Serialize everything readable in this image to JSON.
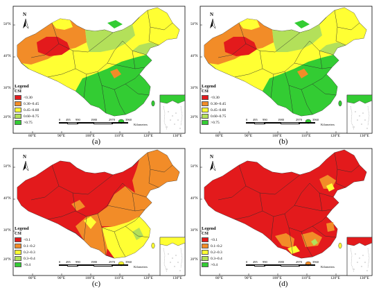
{
  "panels": [
    {
      "caption": "(a)",
      "legend": {
        "title": "Legend",
        "subtitle": "CSI",
        "items": [
          {
            "label": "<0.30",
            "color": "#e31a1c"
          },
          {
            "label": "0.30~0.45",
            "color": "#f28c28"
          },
          {
            "label": "0.45~0.60",
            "color": "#ffff33"
          },
          {
            "label": "0.60~0.75",
            "color": "#b3e05a"
          },
          {
            "label": ">0.75",
            "color": "#33cc33"
          }
        ]
      },
      "palette": [
        "#e31a1c",
        "#f28c28",
        "#ffff33",
        "#b3e05a",
        "#33cc33"
      ],
      "pattern": "a"
    },
    {
      "caption": "(b)",
      "legend": {
        "title": "Legend",
        "subtitle": "CSI",
        "items": [
          {
            "label": "<0.30",
            "color": "#e31a1c"
          },
          {
            "label": "0.30~0.45",
            "color": "#f28c28"
          },
          {
            "label": "0.45~0.60",
            "color": "#ffff33"
          },
          {
            "label": "0.60~0.75",
            "color": "#b3e05a"
          },
          {
            "label": ">0.75",
            "color": "#33cc33"
          }
        ]
      },
      "palette": [
        "#e31a1c",
        "#f28c28",
        "#ffff33",
        "#b3e05a",
        "#33cc33"
      ],
      "pattern": "a"
    },
    {
      "caption": "(c)",
      "legend": {
        "title": "Legend",
        "subtitle": "CSI",
        "items": [
          {
            "label": "<0.1",
            "color": "#e31a1c"
          },
          {
            "label": "0.1~0.2",
            "color": "#f28c28"
          },
          {
            "label": "0.2~0.3",
            "color": "#ffff33"
          },
          {
            "label": "0.3~0.4",
            "color": "#b3e05a"
          },
          {
            "label": ">0.4",
            "color": "#33cc33"
          }
        ]
      },
      "palette": [
        "#e31a1c",
        "#f28c28",
        "#ffff33",
        "#b3e05a",
        "#33cc33"
      ],
      "pattern": "c"
    },
    {
      "caption": "(d)",
      "legend": {
        "title": "Legend",
        "subtitle": "CSI",
        "items": [
          {
            "label": "<0.1",
            "color": "#e31a1c"
          },
          {
            "label": "0.1~0.2",
            "color": "#f28c28"
          },
          {
            "label": "0.2~0.3",
            "color": "#ffff33"
          },
          {
            "label": "0.3~0.4",
            "color": "#b3e05a"
          },
          {
            "label": ">0.4",
            "color": "#33cc33"
          }
        ]
      },
      "palette": [
        "#e31a1c",
        "#f28c28",
        "#ffff33",
        "#b3e05a",
        "#33cc33"
      ],
      "pattern": "d"
    }
  ],
  "latitude_labels": [
    "50°N",
    "40°N",
    "30°N",
    "20°N"
  ],
  "longitude_labels": [
    "80°E",
    "90°E",
    "100°E",
    "110°E",
    "120°E",
    "130°E"
  ],
  "scale_bar": {
    "values": [
      "0",
      "495",
      "990",
      "1980",
      "2970",
      "3960"
    ],
    "unit": "Kilometers"
  },
  "north_arrow": "N",
  "icons": {
    "north": "north-arrow-icon",
    "inset": "south-china-sea-inset-map"
  }
}
